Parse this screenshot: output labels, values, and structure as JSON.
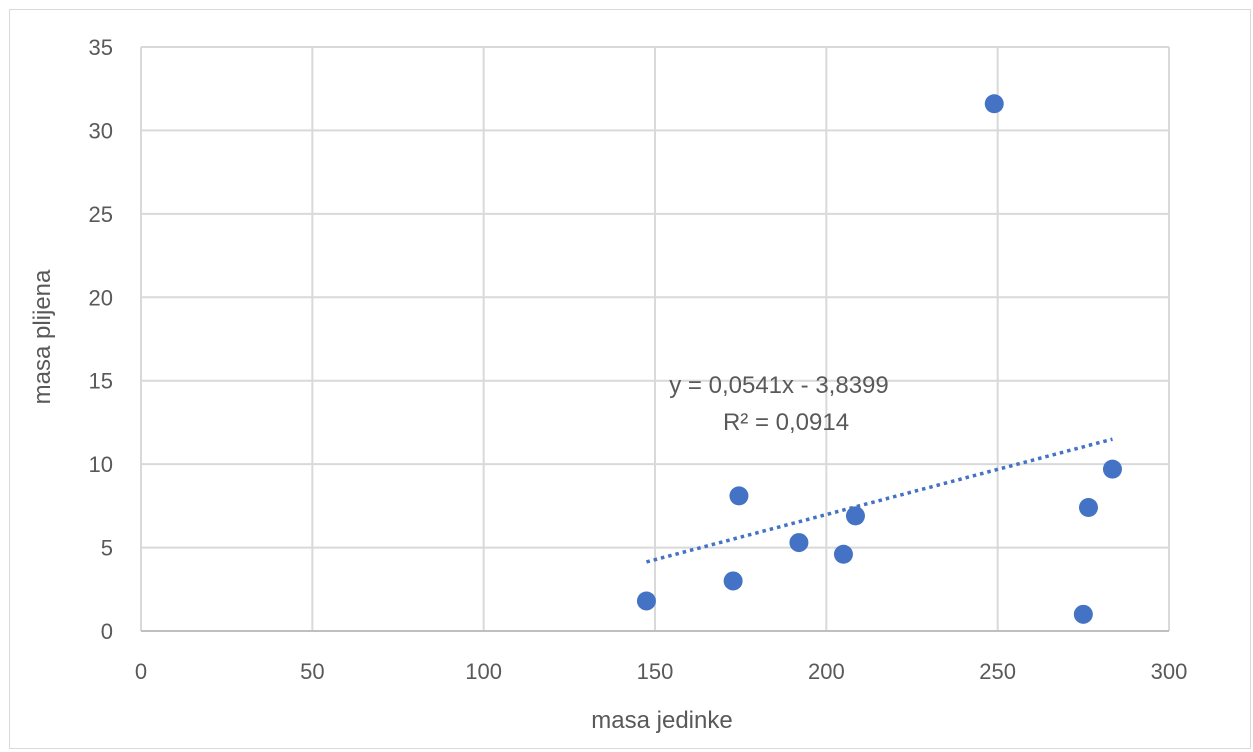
{
  "chart_data": {
    "type": "scatter",
    "title": "",
    "xlabel": "masa jedinke",
    "ylabel": "masa plijena",
    "xlim": [
      0,
      300
    ],
    "ylim": [
      0,
      35
    ],
    "xticks": [
      0,
      50,
      100,
      150,
      200,
      250,
      300
    ],
    "yticks": [
      0,
      5,
      10,
      15,
      20,
      25,
      30,
      35
    ],
    "grid": true,
    "legend": "none",
    "series": [
      {
        "color": "#4472c4",
        "points": [
          {
            "x": 147.5,
            "y": 1.8
          },
          {
            "x": 172.8,
            "y": 3.0
          },
          {
            "x": 174.5,
            "y": 8.1
          },
          {
            "x": 192.0,
            "y": 5.3
          },
          {
            "x": 205.0,
            "y": 4.6
          },
          {
            "x": 208.5,
            "y": 6.9
          },
          {
            "x": 249.0,
            "y": 31.6
          },
          {
            "x": 275.0,
            "y": 1.0
          },
          {
            "x": 276.5,
            "y": 7.4
          },
          {
            "x": 283.5,
            "y": 9.7
          }
        ]
      }
    ],
    "trendline": {
      "type": "linear",
      "slope": 0.0541,
      "intercept": -3.8399,
      "x_range": [
        147.5,
        283.5
      ],
      "color": "#4472c4",
      "equation_label": "y = 0,0541x - 3,8399",
      "r2_label": "R² = 0,0914"
    }
  }
}
